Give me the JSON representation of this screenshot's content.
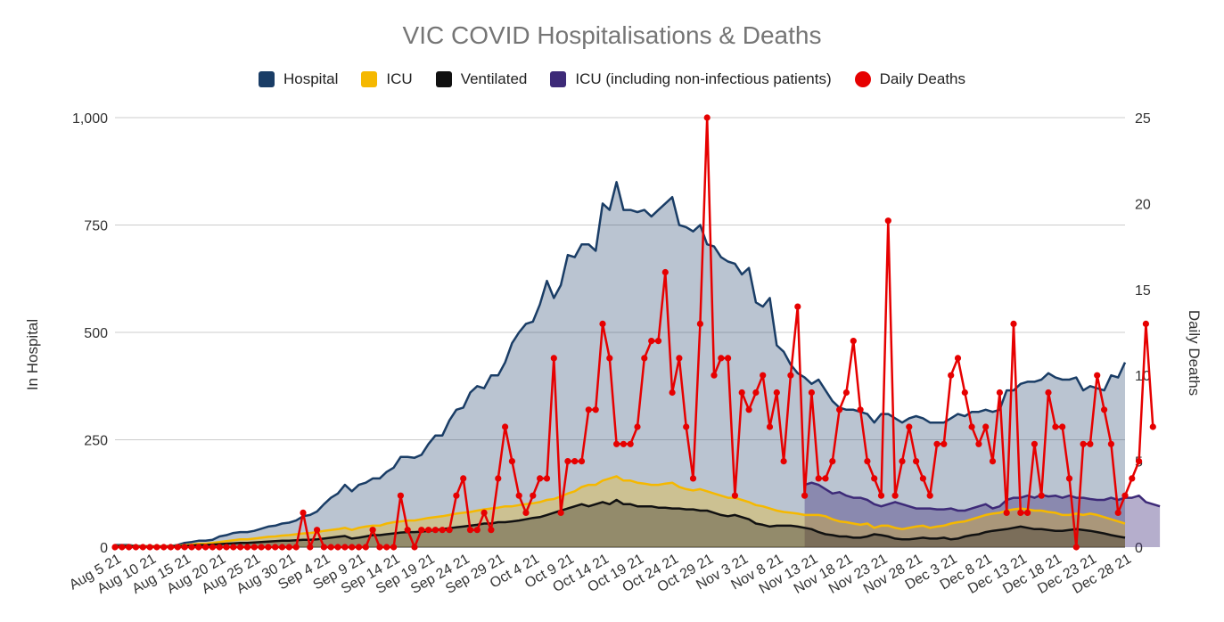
{
  "chart_data": {
    "type": "area+line",
    "title": "VIC COVID Hospitalisations & Deaths",
    "ylabel_left": "In Hospital",
    "ylabel_right": "Daily Deaths",
    "ylim_left": [
      0,
      1000
    ],
    "ylim_right": [
      0,
      25
    ],
    "yticks_left": [
      "0",
      "250",
      "500",
      "750",
      "1,000"
    ],
    "yticks_right": [
      "0",
      "5",
      "10",
      "15",
      "20",
      "25"
    ],
    "x_tick_labels": [
      "Aug 5 21",
      "Aug 10 21",
      "Aug 15 21",
      "Aug 20 21",
      "Aug 25 21",
      "Aug 30 21",
      "Sep 4 21",
      "Sep 9 21",
      "Sep 14 21",
      "Sep 19 21",
      "Sep 24 21",
      "Sep 29 21",
      "Oct 4 21",
      "Oct 9 21",
      "Oct 14 21",
      "Oct 19 21",
      "Oct 24 21",
      "Oct 29 21",
      "Nov 3 21",
      "Nov 8 21",
      "Nov 13 21",
      "Nov 18 21",
      "Nov 23 21",
      "Nov 28 21",
      "Dec 3 21",
      "Dec 8 21",
      "Dec 13 21",
      "Dec 18 21",
      "Dec 23 21",
      "Dec 28 21"
    ],
    "x_start": "Aug 5 21",
    "legend": [
      {
        "name": "Hospital",
        "color": "#1a3d66"
      },
      {
        "name": "ICU",
        "color": "#f5b800"
      },
      {
        "name": "Ventilated",
        "color": "#111111"
      },
      {
        "name": "ICU (including non-infectious patients)",
        "color": "#3d2a78"
      },
      {
        "name": "Daily Deaths",
        "color": "#e60000"
      }
    ],
    "series": [
      {
        "name": "Hospital",
        "axis": "left",
        "values": [
          5,
          5,
          5,
          3,
          3,
          2,
          2,
          2,
          3,
          5,
          10,
          12,
          15,
          15,
          17,
          25,
          28,
          33,
          35,
          35,
          38,
          43,
          48,
          50,
          55,
          57,
          62,
          72,
          75,
          83,
          100,
          115,
          125,
          145,
          130,
          145,
          150,
          160,
          160,
          175,
          185,
          210,
          210,
          208,
          215,
          240,
          260,
          260,
          295,
          320,
          325,
          360,
          375,
          370,
          400,
          400,
          430,
          475,
          500,
          520,
          525,
          565,
          620,
          580,
          610,
          680,
          675,
          705,
          705,
          690,
          800,
          785,
          850,
          785,
          785,
          780,
          785,
          770,
          785,
          800,
          815,
          750,
          745,
          735,
          750,
          705,
          700,
          675,
          665,
          660,
          635,
          650,
          570,
          560,
          580,
          470,
          455,
          425,
          405,
          395,
          380,
          390,
          365,
          340,
          325,
          320,
          320,
          315,
          310,
          290,
          310,
          310,
          300,
          290,
          300,
          305,
          300,
          290,
          290,
          290,
          300,
          310,
          305,
          315,
          315,
          320,
          315,
          320,
          365,
          365,
          380,
          385,
          385,
          390,
          405,
          395,
          390,
          390,
          395,
          365,
          375,
          370,
          365,
          400,
          395,
          430
        ]
      },
      {
        "name": "ICU",
        "axis": "left",
        "values": [
          3,
          3,
          3,
          2,
          2,
          2,
          2,
          2,
          2,
          3,
          5,
          6,
          8,
          8,
          10,
          12,
          14,
          16,
          18,
          18,
          20,
          22,
          24,
          25,
          27,
          28,
          30,
          32,
          33,
          35,
          38,
          40,
          42,
          45,
          40,
          45,
          48,
          50,
          50,
          55,
          58,
          60,
          62,
          62,
          65,
          68,
          70,
          72,
          75,
          78,
          80,
          82,
          85,
          88,
          90,
          92,
          95,
          95,
          98,
          100,
          102,
          105,
          110,
          112,
          118,
          125,
          130,
          140,
          145,
          145,
          155,
          160,
          165,
          155,
          155,
          150,
          148,
          145,
          145,
          148,
          150,
          140,
          135,
          132,
          135,
          130,
          125,
          120,
          115,
          115,
          110,
          105,
          98,
          95,
          90,
          85,
          82,
          80,
          78,
          75,
          75,
          75,
          72,
          65,
          60,
          58,
          55,
          52,
          55,
          45,
          50,
          50,
          45,
          42,
          45,
          48,
          50,
          45,
          48,
          50,
          55,
          58,
          60,
          65,
          70,
          75,
          78,
          80,
          85,
          88,
          90,
          88,
          85,
          85,
          82,
          80,
          75,
          75,
          78,
          75,
          78,
          75,
          70,
          65,
          60,
          55
        ]
      },
      {
        "name": "Ventilated",
        "axis": "left",
        "values": [
          2,
          2,
          2,
          1,
          1,
          1,
          1,
          1,
          1,
          2,
          3,
          4,
          5,
          5,
          6,
          7,
          8,
          9,
          10,
          10,
          11,
          12,
          13,
          14,
          15,
          15,
          16,
          17,
          17,
          18,
          20,
          22,
          24,
          26,
          20,
          22,
          25,
          28,
          28,
          30,
          32,
          34,
          35,
          35,
          36,
          38,
          40,
          42,
          44,
          46,
          48,
          50,
          52,
          55,
          55,
          58,
          58,
          60,
          62,
          65,
          68,
          70,
          75,
          80,
          85,
          90,
          95,
          100,
          95,
          100,
          105,
          100,
          110,
          100,
          100,
          95,
          95,
          95,
          92,
          92,
          90,
          90,
          88,
          88,
          85,
          85,
          80,
          75,
          72,
          75,
          70,
          65,
          55,
          52,
          48,
          50,
          50,
          50,
          48,
          45,
          42,
          35,
          30,
          28,
          25,
          25,
          22,
          22,
          25,
          30,
          28,
          25,
          20,
          18,
          18,
          20,
          22,
          20,
          20,
          22,
          18,
          20,
          25,
          28,
          30,
          35,
          38,
          40,
          42,
          45,
          48,
          45,
          42,
          42,
          40,
          38,
          38,
          40,
          42,
          40,
          38,
          35,
          32,
          28,
          25,
          22
        ]
      },
      {
        "name": "ICU (including non-infectious patients)",
        "axis": "left",
        "start_index": 99,
        "values": [
          145,
          150,
          145,
          135,
          125,
          128,
          120,
          115,
          115,
          110,
          100,
          95,
          100,
          105,
          100,
          95,
          90,
          90,
          90,
          88,
          88,
          90,
          85,
          85,
          90,
          95,
          100,
          90,
          95,
          110,
          115,
          115,
          120,
          115,
          122,
          118,
          120,
          115,
          120,
          115,
          115,
          112,
          110,
          110,
          115,
          110,
          115,
          115,
          120,
          105,
          100,
          95
        ]
      },
      {
        "name": "Daily Deaths",
        "axis": "right",
        "values": [
          0,
          0,
          0,
          0,
          0,
          0,
          0,
          0,
          0,
          0,
          0,
          0,
          0,
          0,
          0,
          0,
          0,
          0,
          0,
          0,
          0,
          0,
          0,
          0,
          0,
          0,
          0,
          2,
          0,
          1,
          0,
          0,
          0,
          0,
          0,
          0,
          0,
          1,
          0,
          0,
          0,
          3,
          1,
          0,
          1,
          1,
          1,
          1,
          1,
          3,
          4,
          1,
          1,
          2,
          1,
          4,
          7,
          5,
          3,
          2,
          3,
          4,
          4,
          11,
          2,
          5,
          5,
          5,
          8,
          8,
          13,
          11,
          6,
          6,
          6,
          7,
          11,
          12,
          12,
          16,
          9,
          11,
          7,
          4,
          13,
          25,
          10,
          11,
          11,
          3,
          9,
          8,
          9,
          10,
          7,
          9,
          5,
          10,
          14,
          3,
          9,
          4,
          4,
          5,
          8,
          9,
          12,
          8,
          5,
          4,
          3,
          19,
          3,
          5,
          7,
          5,
          4,
          3,
          6,
          6,
          10,
          11,
          9,
          7,
          6,
          7,
          5,
          9,
          2,
          13,
          2,
          2,
          6,
          3,
          9,
          7,
          7,
          4,
          0,
          6,
          6,
          10,
          8,
          6,
          2,
          3,
          4,
          5,
          13,
          7
        ]
      }
    ]
  }
}
